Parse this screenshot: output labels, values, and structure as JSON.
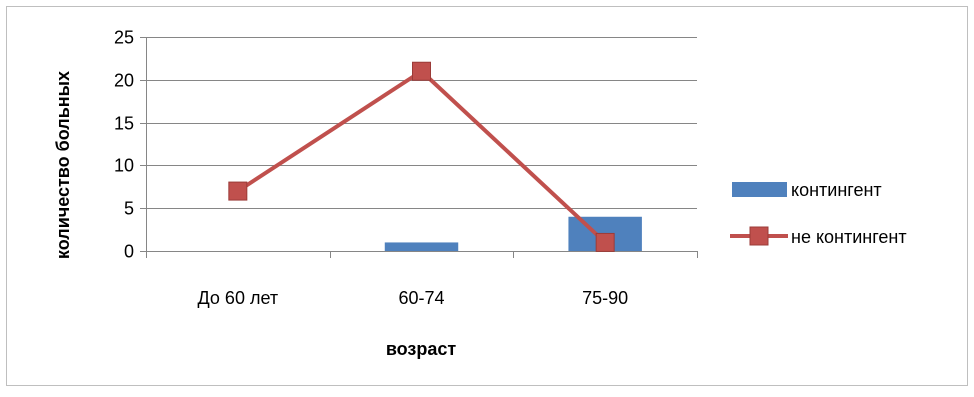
{
  "chart_data": {
    "type": "bar",
    "categories": [
      "До 60  лет",
      "60-74",
      "75-90"
    ],
    "series": [
      {
        "name": "контингент",
        "type": "bar",
        "color": "#4F81BD",
        "values": [
          0,
          1,
          4
        ]
      },
      {
        "name": "не контингент",
        "type": "line",
        "marker": "square",
        "color": "#C0504D",
        "values": [
          7,
          21,
          1
        ]
      }
    ],
    "xlabel": "возраст",
    "ylabel": "количество больных",
    "ylim": [
      0,
      25
    ],
    "yticks": [
      0,
      5,
      10,
      15,
      20,
      25
    ],
    "grid": true,
    "legend": "right"
  }
}
